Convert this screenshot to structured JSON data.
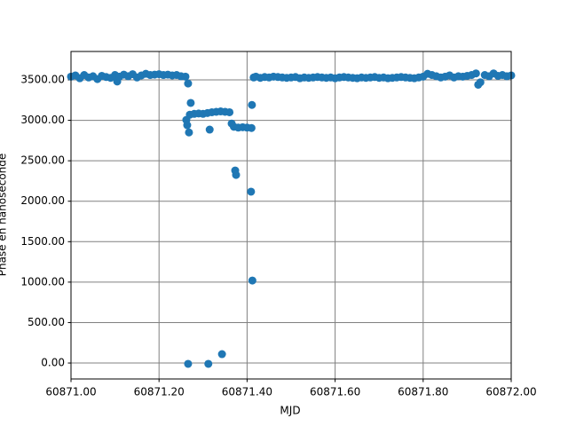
{
  "chart_data": {
    "type": "scatter",
    "xlabel": "MJD",
    "ylabel": "Phase en nanoseconde",
    "x": [
      60871.0,
      60871.01,
      60871.02,
      60871.03,
      60871.04,
      60871.05,
      60871.06,
      60871.07,
      60871.08,
      60871.09,
      60871.1,
      60871.105,
      60871.11,
      60871.12,
      60871.13,
      60871.14,
      60871.15,
      60871.16,
      60871.17,
      60871.18,
      60871.19,
      60871.2,
      60871.21,
      60871.22,
      60871.23,
      60871.24,
      60871.25,
      60871.26,
      60871.266,
      60871.272,
      60871.262,
      60871.264,
      60871.268,
      60871.315,
      60871.373,
      60871.375,
      60871.409,
      60871.411,
      60871.412,
      60871.266,
      60871.312,
      60871.343,
      60871.27,
      60871.28,
      60871.29,
      60871.3,
      60871.31,
      60871.32,
      60871.33,
      60871.34,
      60871.35,
      60871.36,
      60871.365,
      60871.37,
      60871.38,
      60871.39,
      60871.4,
      60871.41,
      60871.415,
      60871.42,
      60871.43,
      60871.44,
      60871.45,
      60871.46,
      60871.47,
      60871.48,
      60871.49,
      60871.5,
      60871.51,
      60871.52,
      60871.53,
      60871.54,
      60871.55,
      60871.56,
      60871.57,
      60871.58,
      60871.59,
      60871.6,
      60871.61,
      60871.62,
      60871.63,
      60871.64,
      60871.65,
      60871.66,
      60871.67,
      60871.68,
      60871.69,
      60871.7,
      60871.71,
      60871.72,
      60871.73,
      60871.74,
      60871.75,
      60871.76,
      60871.77,
      60871.78,
      60871.79,
      60871.8,
      60871.81,
      60871.82,
      60871.83,
      60871.84,
      60871.85,
      60871.86,
      60871.87,
      60871.88,
      60871.89,
      60871.9,
      60871.91,
      60871.92,
      60871.925,
      60871.93,
      60871.94,
      60871.95,
      60871.96,
      60871.97,
      60871.98,
      60871.99,
      60872.0
    ],
    "series": [
      {
        "name": "Phase",
        "color": "#1f77b4",
        "values": [
          3540,
          3555,
          3520,
          3560,
          3530,
          3545,
          3510,
          3550,
          3535,
          3525,
          3560,
          3480,
          3540,
          3565,
          3545,
          3570,
          3530,
          3555,
          3575,
          3560,
          3565,
          3570,
          3560,
          3565,
          3555,
          3560,
          3545,
          3540,
          3455,
          3215,
          3005,
          2940,
          2850,
          2885,
          2380,
          2325,
          2118,
          3190,
          1020,
          -10,
          -10,
          110,
          3070,
          3080,
          3085,
          3080,
          3090,
          3100,
          3105,
          3110,
          3105,
          3100,
          2960,
          2920,
          2910,
          2915,
          2910,
          2905,
          3530,
          3540,
          3525,
          3535,
          3530,
          3540,
          3535,
          3530,
          3525,
          3530,
          3535,
          3520,
          3530,
          3525,
          3530,
          3535,
          3530,
          3525,
          3530,
          3520,
          3530,
          3535,
          3530,
          3525,
          3520,
          3530,
          3525,
          3530,
          3535,
          3525,
          3530,
          3520,
          3525,
          3530,
          3535,
          3530,
          3525,
          3520,
          3530,
          3540,
          3575,
          3560,
          3545,
          3530,
          3540,
          3555,
          3530,
          3545,
          3540,
          3550,
          3560,
          3580,
          3440,
          3470,
          3560,
          3545,
          3580,
          3550,
          3560,
          3545,
          3555
        ]
      }
    ],
    "xlim": [
      60871.0,
      60872.0
    ],
    "xticks": [
      {
        "value": 60871.0,
        "label": "60871.00"
      },
      {
        "value": 60871.2,
        "label": "60871.20"
      },
      {
        "value": 60871.4,
        "label": "60871.40"
      },
      {
        "value": 60871.6,
        "label": "60871.60"
      },
      {
        "value": 60871.8,
        "label": "60871.80"
      },
      {
        "value": 60872.0,
        "label": "60872.00"
      }
    ],
    "ylim": [
      -197,
      3851
    ],
    "yticks": [
      {
        "value": 0,
        "label": "0.00"
      },
      {
        "value": 500,
        "label": "500.00"
      },
      {
        "value": 1000,
        "label": "1000.00"
      },
      {
        "value": 1500,
        "label": "1500.00"
      },
      {
        "value": 2000,
        "label": "2000.00"
      },
      {
        "value": 2500,
        "label": "2500.00"
      },
      {
        "value": 3000,
        "label": "3000.00"
      },
      {
        "value": 3500,
        "label": "3500.00"
      }
    ],
    "grid": true
  }
}
